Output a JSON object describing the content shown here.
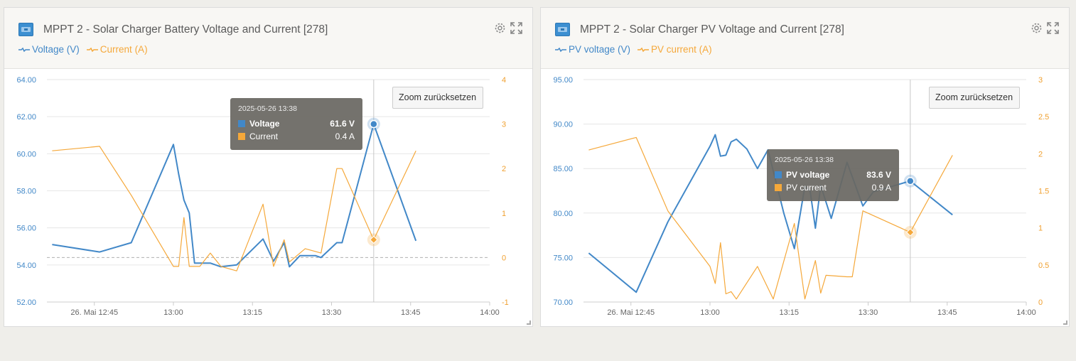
{
  "panels": [
    {
      "title": "MPPT 2 - Solar Charger Battery Voltage and Current [278]",
      "zoom_label": "Zoom zurücksetzen",
      "tooltip": {
        "date": "2025-05-26 13:38",
        "rows": [
          {
            "label": "Voltage",
            "value": "61.6 V"
          },
          {
            "label": "Current",
            "value": "0.4 A"
          }
        ]
      }
    },
    {
      "title": "MPPT 2 - Solar Charger PV Voltage and Current [278]",
      "zoom_label": "Zoom zurücksetzen",
      "tooltip": {
        "date": "2025-05-26 13:38",
        "rows": [
          {
            "label": "PV voltage",
            "value": "83.6 V"
          },
          {
            "label": "PV current",
            "value": "0.9 A"
          }
        ]
      }
    }
  ],
  "colors": {
    "voltage": "#4288c8",
    "current": "#f5a83a",
    "grid": "#e6e6e6",
    "axis_text_left": "#4288c8",
    "axis_text_right": "#f0a030"
  },
  "icons": {
    "settings": "gear-icon",
    "fullscreen": "expand-icon",
    "logo": "solar-charger-icon"
  },
  "chart_data": [
    {
      "type": "line",
      "x_ticks": [
        "26. Mai 12:45",
        "13:00",
        "13:15",
        "13:30",
        "13:45",
        "14:00"
      ],
      "xlim": [
        "12:36",
        "14:00"
      ],
      "y_left": {
        "ticks": [
          "52.00",
          "54.00",
          "56.00",
          "58.00",
          "60.00",
          "62.00",
          "64.00"
        ],
        "ylim": [
          52,
          64
        ]
      },
      "y_right": {
        "ticks": [
          "-1",
          "0",
          "1",
          "2",
          "3",
          "4"
        ],
        "ylim": [
          -1,
          4
        ]
      },
      "crosshair_x": "13:38",
      "series": [
        {
          "name": "Voltage (V)",
          "axis": "left",
          "points": [
            [
              "12:37",
              55.1
            ],
            [
              "12:46",
              54.7
            ],
            [
              "12:52",
              55.2
            ],
            [
              "13:00",
              60.5
            ],
            [
              "13:01",
              58.9
            ],
            [
              "13:02",
              57.5
            ],
            [
              "13:03",
              56.8
            ],
            [
              "13:04",
              54.1
            ],
            [
              "13:07",
              54.1
            ],
            [
              "13:09",
              53.9
            ],
            [
              "13:12",
              54.0
            ],
            [
              "13:17",
              55.4
            ],
            [
              "13:19",
              54.2
            ],
            [
              "13:21",
              55.2
            ],
            [
              "13:22",
              53.9
            ],
            [
              "13:24",
              54.5
            ],
            [
              "13:27",
              54.5
            ],
            [
              "13:28",
              54.4
            ],
            [
              "13:31",
              55.2
            ],
            [
              "13:32",
              55.2
            ],
            [
              "13:38",
              61.6
            ],
            [
              "13:46",
              55.3
            ]
          ]
        },
        {
          "name": "Current (A)",
          "axis": "right",
          "points": [
            [
              "12:37",
              2.4
            ],
            [
              "12:46",
              2.5
            ],
            [
              "12:52",
              1.4
            ],
            [
              "13:00",
              -0.2
            ],
            [
              "13:01",
              -0.2
            ],
            [
              "13:02",
              0.9
            ],
            [
              "13:03",
              -0.2
            ],
            [
              "13:05",
              -0.2
            ],
            [
              "13:07",
              0.1
            ],
            [
              "13:09",
              -0.2
            ],
            [
              "13:12",
              -0.3
            ],
            [
              "13:17",
              1.2
            ],
            [
              "13:19",
              -0.2
            ],
            [
              "13:21",
              0.4
            ],
            [
              "13:22",
              -0.1
            ],
            [
              "13:25",
              0.2
            ],
            [
              "13:28",
              0.1
            ],
            [
              "13:31",
              2.0
            ],
            [
              "13:32",
              2.0
            ],
            [
              "13:38",
              0.4
            ],
            [
              "13:46",
              2.4
            ]
          ]
        }
      ]
    },
    {
      "type": "line",
      "x_ticks": [
        "26. Mai 12:45",
        "13:00",
        "13:15",
        "13:30",
        "13:45",
        "14:00"
      ],
      "xlim": [
        "12:36",
        "14:00"
      ],
      "y_left": {
        "ticks": [
          "70.00",
          "75.00",
          "80.00",
          "85.00",
          "90.00",
          "95.00"
        ],
        "ylim": [
          70,
          95
        ]
      },
      "y_right": {
        "ticks": [
          "0",
          "0.5",
          "1",
          "1.5",
          "2",
          "2.5",
          "3"
        ],
        "ylim": [
          0,
          3
        ]
      },
      "crosshair_x": "13:38",
      "series": [
        {
          "name": "PV voltage (V)",
          "axis": "left",
          "points": [
            [
              "12:37",
              75.5
            ],
            [
              "12:46",
              71.1
            ],
            [
              "12:52",
              79.0
            ],
            [
              "13:00",
              87.5
            ],
            [
              "13:01",
              88.8
            ],
            [
              "13:02",
              86.4
            ],
            [
              "13:03",
              86.5
            ],
            [
              "13:04",
              88.0
            ],
            [
              "13:05",
              88.3
            ],
            [
              "13:07",
              87.2
            ],
            [
              "13:09",
              85.0
            ],
            [
              "13:11",
              87.1
            ],
            [
              "13:14",
              80.0
            ],
            [
              "13:16",
              76.0
            ],
            [
              "13:18",
              83.0
            ],
            [
              "13:19",
              82.5
            ],
            [
              "13:20",
              78.3
            ],
            [
              "13:21",
              83.1
            ],
            [
              "13:23",
              79.4
            ],
            [
              "13:26",
              85.7
            ],
            [
              "13:29",
              80.8
            ],
            [
              "13:31",
              82.4
            ],
            [
              "13:38",
              83.6
            ],
            [
              "13:46",
              79.8
            ]
          ]
        },
        {
          "name": "PV current (A)",
          "axis": "right",
          "points": [
            [
              "12:37",
              2.05
            ],
            [
              "12:46",
              2.22
            ],
            [
              "12:52",
              1.23
            ],
            [
              "13:00",
              0.48
            ],
            [
              "13:01",
              0.25
            ],
            [
              "13:02",
              0.8
            ],
            [
              "13:03",
              0.11
            ],
            [
              "13:04",
              0.14
            ],
            [
              "13:05",
              0.04
            ],
            [
              "13:09",
              0.48
            ],
            [
              "13:12",
              0.04
            ],
            [
              "13:16",
              1.06
            ],
            [
              "13:18",
              0.04
            ],
            [
              "13:20",
              0.56
            ],
            [
              "13:21",
              0.12
            ],
            [
              "13:22",
              0.36
            ],
            [
              "13:26",
              0.34
            ],
            [
              "13:27",
              0.34
            ],
            [
              "13:29",
              1.23
            ],
            [
              "13:38",
              0.94
            ],
            [
              "13:46",
              1.98
            ]
          ]
        }
      ]
    }
  ]
}
